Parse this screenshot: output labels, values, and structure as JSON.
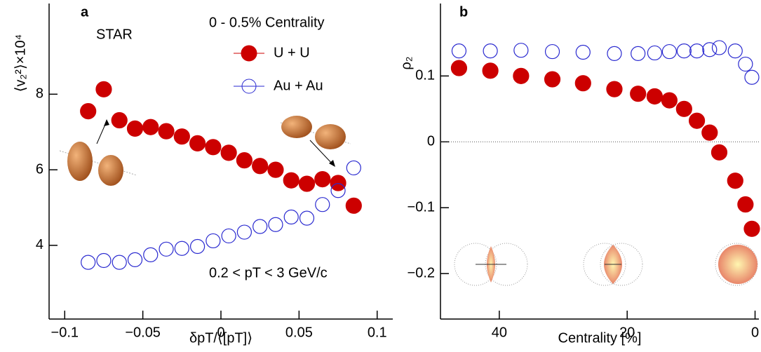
{
  "chart_data": [
    {
      "type": "scatter",
      "label": "a",
      "x_label": "δpT/⟨[pT]⟩",
      "y_label": "⟨v₂²⟩×10⁴",
      "annotations": [
        "STAR",
        "0 - 0.5% Centrality",
        "0.2 < pT < 3 GeV/c"
      ],
      "x": [
        -0.085,
        -0.075,
        -0.065,
        -0.055,
        -0.045,
        -0.035,
        -0.025,
        -0.015,
        -0.005,
        0.005,
        0.015,
        0.025,
        0.035,
        0.045,
        0.055,
        0.065,
        0.075,
        0.085
      ],
      "series": [
        {
          "name": "U + U",
          "color": "#cc0000",
          "filled": true,
          "values": [
            7.55,
            8.13,
            7.31,
            7.09,
            7.13,
            7.02,
            6.88,
            6.7,
            6.6,
            6.45,
            6.25,
            6.1,
            6.0,
            5.72,
            5.63,
            5.75,
            5.65,
            5.05
          ]
        },
        {
          "name": "Au + Au",
          "color": "#2a2ad0",
          "filled": false,
          "values": [
            3.55,
            3.6,
            3.55,
            3.62,
            3.75,
            3.9,
            3.92,
            3.97,
            4.12,
            4.25,
            4.35,
            4.5,
            4.55,
            4.75,
            4.72,
            5.08,
            5.45,
            6.05
          ]
        }
      ],
      "xlim": [
        -0.11,
        0.11
      ],
      "xticks": [
        {
          "value": -0.1,
          "label": "−0.1"
        },
        {
          "value": -0.05,
          "label": "−0.05"
        },
        0,
        0.05,
        0.1
      ],
      "ylim": [
        2.05,
        10.4
      ],
      "yticks": [
        4,
        6,
        8
      ],
      "legend": true,
      "zero_line": false
    },
    {
      "type": "scatter",
      "label": "b",
      "x_label": "Centrality [%]",
      "y_label": "ρ₂",
      "annotations": [],
      "x": [
        46.3,
        41.4,
        36.6,
        31.7,
        26.9,
        22.0,
        18.3,
        15.7,
        13.4,
        11.1,
        9.1,
        7.1,
        5.6,
        3.1,
        1.5,
        0.5
      ],
      "series": [
        {
          "name": "U + U",
          "color": "#cc0000",
          "filled": true,
          "values": [
            0.112,
            0.108,
            0.1,
            0.095,
            0.089,
            0.08,
            0.073,
            0.069,
            0.063,
            0.05,
            0.032,
            0.014,
            -0.016,
            -0.059,
            -0.095,
            -0.132
          ]
        },
        {
          "name": "Au + Au",
          "color": "#2a2ad0",
          "filled": false,
          "values": [
            0.138,
            0.138,
            0.139,
            0.137,
            0.136,
            0.134,
            0.134,
            0.135,
            0.137,
            0.138,
            0.138,
            0.14,
            0.143,
            0.138,
            0.118,
            0.098
          ]
        }
      ],
      "xlim": [
        49.2,
        -0.6
      ],
      "xticks": [
        40,
        20,
        0
      ],
      "ylim": [
        -0.269,
        0.21
      ],
      "yticks": [
        0.1,
        0,
        {
          "value": -0.1,
          "label": "−0.1"
        },
        {
          "value": -0.2,
          "label": "−0.2"
        }
      ],
      "legend": false,
      "zero_line": true
    }
  ]
}
